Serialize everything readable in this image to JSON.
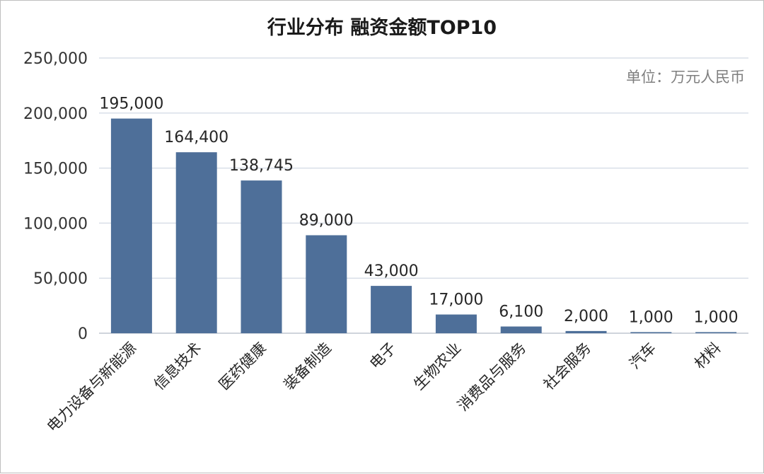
{
  "chart_data": {
    "type": "bar",
    "title": "行业分布 融资金额TOP10",
    "unit_note": "单位：万元人民币",
    "categories": [
      "电力设备与新能源",
      "信息技术",
      "医药健康",
      "装备制造",
      "电子",
      "生物农业",
      "消费品与服务",
      "社会服务",
      "汽车",
      "材料"
    ],
    "values": [
      195000,
      164400,
      138745,
      89000,
      43000,
      17000,
      6100,
      2000,
      1000,
      1000
    ],
    "data_labels": [
      "195,000",
      "164,400",
      "138,745",
      "89,000",
      "43,000",
      "17,000",
      "6,100",
      "2,000",
      "1,000",
      "1,000"
    ],
    "yticks": [
      0,
      50000,
      100000,
      150000,
      200000,
      250000
    ],
    "ytick_labels": [
      "0",
      "50,000",
      "100,000",
      "150,000",
      "200,000",
      "250,000"
    ],
    "ylim": [
      0,
      250000
    ],
    "grid": true,
    "bar_color": "#4e6f99",
    "grid_color": "#d9dfe8"
  }
}
